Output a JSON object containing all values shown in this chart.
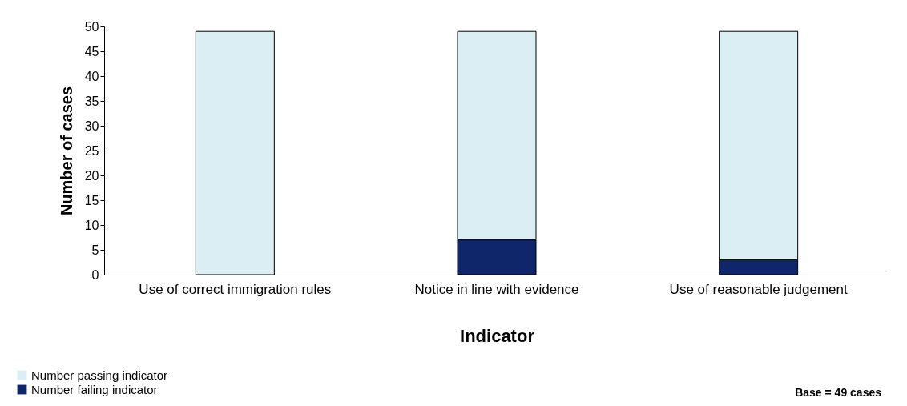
{
  "chart_data": {
    "type": "bar",
    "stacked": true,
    "xlabel": "Indicator",
    "ylabel": "Number of cases",
    "categories": [
      "Use of correct immigration rules",
      "Notice in line with evidence",
      "Use of reasonable judgement"
    ],
    "series": [
      {
        "name": "Number failing indicator",
        "color": "#10266a",
        "values": [
          0,
          7,
          3
        ]
      },
      {
        "name": "Number passing indicator",
        "color": "#dbeef4",
        "values": [
          49,
          42,
          46
        ]
      }
    ],
    "ylim": [
      0,
      50
    ],
    "yticks": [
      0,
      5,
      10,
      15,
      20,
      25,
      30,
      35,
      40,
      45,
      50
    ],
    "grid": false,
    "legend": "bottom left",
    "annotations": [
      "Base = 49 cases"
    ]
  }
}
